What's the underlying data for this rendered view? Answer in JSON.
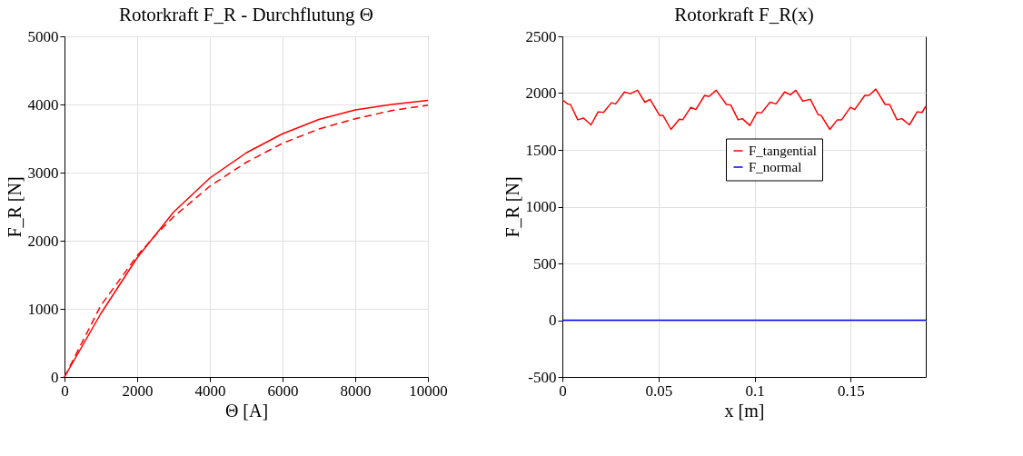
{
  "chart_data": [
    {
      "type": "line",
      "title": "Rotorkraft F_R - Durchflutung Θ",
      "xlabel": "Θ [A]",
      "ylabel": "F_R [N]",
      "xlim": [
        0,
        10000
      ],
      "xticks": [
        0,
        2000,
        4000,
        6000,
        8000,
        10000
      ],
      "ylim": [
        0,
        5000
      ],
      "yticks": [
        0,
        1000,
        2000,
        3000,
        4000,
        5000
      ],
      "grid": true,
      "legend": false,
      "series": [
        {
          "color": "#ff0000",
          "line_style": "solid",
          "x": [
            0,
            1000,
            2000,
            3000,
            4000,
            5000,
            6000,
            7000,
            8000,
            9000,
            10000
          ],
          "values": [
            0,
            930,
            1750,
            2420,
            2920,
            3290,
            3570,
            3780,
            3920,
            4000,
            4060
          ]
        },
        {
          "color": "#ff0000",
          "line_style": "dashed",
          "x": [
            0,
            1000,
            2000,
            2500,
            3000,
            4000,
            5000,
            6000,
            7000,
            8000,
            9000,
            10000
          ],
          "values": [
            0,
            1050,
            1780,
            2080,
            2350,
            2800,
            3150,
            3430,
            3640,
            3790,
            3910,
            3990
          ]
        }
      ]
    },
    {
      "type": "line",
      "title": "Rotorkraft F_R(x)",
      "xlabel": "x [m]",
      "ylabel": "F_R [N]",
      "xlim": [
        0,
        0.189
      ],
      "xticks": [
        0,
        0.05,
        0.1,
        0.15
      ],
      "ylim": [
        -500,
        2500
      ],
      "yticks": [
        -500,
        0,
        500,
        1000,
        1500,
        2000,
        2500
      ],
      "grid": true,
      "legend": "right",
      "series": [
        {
          "name": "F_tangential",
          "color": "#ff0000",
          "line_style": "solid",
          "x": [
            0.0001,
            0.0027,
            0.0042,
            0.008,
            0.011,
            0.0149,
            0.0186,
            0.0214,
            0.0255,
            0.0277,
            0.0323,
            0.0353,
            0.0391,
            0.0429,
            0.0456,
            0.0505,
            0.0523,
            0.0565,
            0.0608,
            0.0626,
            0.0668,
            0.0694,
            0.074,
            0.0762,
            0.08,
            0.0853,
            0.0876,
            0.0914,
            0.0936,
            0.0975,
            0.1012,
            0.1035,
            0.108,
            0.1111,
            0.1156,
            0.1186,
            0.1214,
            0.125,
            0.129,
            0.133,
            0.1345,
            0.1391,
            0.143,
            0.1452,
            0.1498,
            0.152,
            0.1573,
            0.1595,
            0.163,
            0.1679,
            0.1702,
            0.174,
            0.1766,
            0.1805,
            0.1845,
            0.1871,
            0.189
          ],
          "values": [
            1940,
            1905,
            1900,
            1765,
            1780,
            1720,
            1835,
            1830,
            1915,
            1905,
            2010,
            1995,
            2025,
            1920,
            1945,
            1805,
            1805,
            1680,
            1770,
            1765,
            1875,
            1855,
            1980,
            1970,
            2025,
            1900,
            1895,
            1765,
            1775,
            1715,
            1830,
            1825,
            1920,
            1905,
            2010,
            1985,
            2025,
            1930,
            1945,
            1810,
            1805,
            1680,
            1765,
            1765,
            1875,
            1855,
            1980,
            1980,
            2035,
            1900,
            1900,
            1765,
            1775,
            1720,
            1835,
            1830,
            1885
          ]
        },
        {
          "name": "F_normal",
          "color": "#0000ff",
          "line_style": "solid",
          "x": [
            0,
            0.05,
            0.1,
            0.15,
            0.189
          ],
          "values": [
            0,
            0,
            0,
            0,
            0
          ]
        }
      ]
    }
  ]
}
